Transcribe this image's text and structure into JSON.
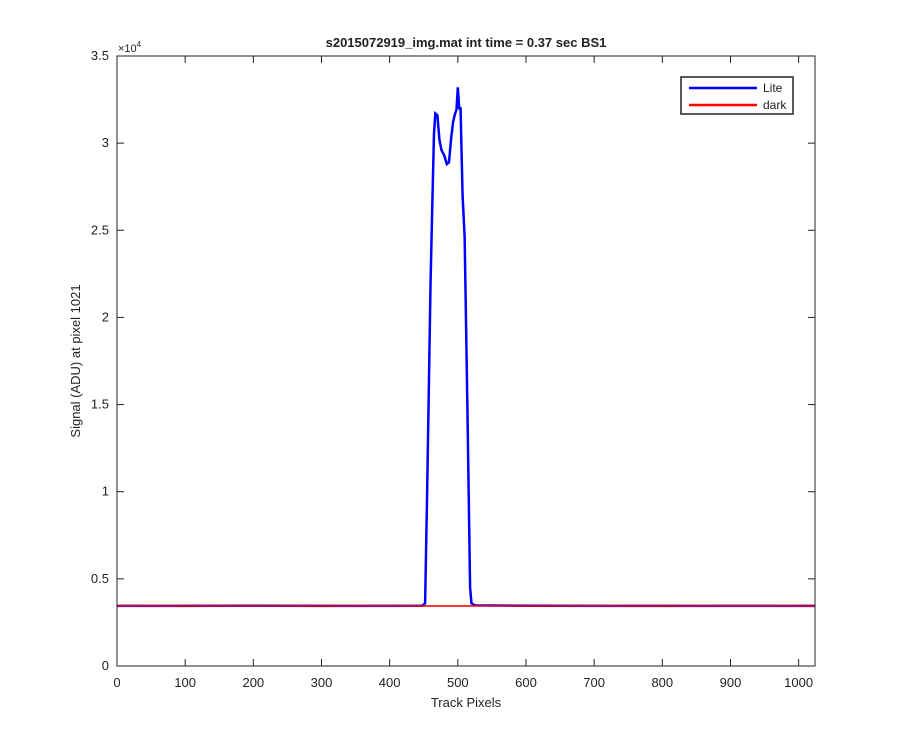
{
  "chart_data": {
    "type": "line",
    "title": "s2015072919_img.mat int time = 0.37 sec   BS1",
    "x_label": "Track Pixels",
    "y_label": "Signal (ADU) at pixel 1021",
    "y_multiplier": "×10",
    "y_multiplier_exponent": "4",
    "x": [
      0,
      100,
      200,
      300,
      400,
      448,
      452,
      455,
      460,
      462,
      465,
      467,
      470,
      473,
      476,
      480,
      484,
      487,
      490,
      493,
      496,
      498,
      500,
      502,
      504,
      507,
      510,
      514,
      518,
      520,
      525,
      600,
      700,
      800,
      900,
      1024
    ],
    "series": [
      {
        "name": "Lite",
        "color": "#0000ff",
        "values": [
          3450,
          3450,
          3460,
          3450,
          3450,
          3460,
          3600,
          10000,
          22000,
          25500,
          30500,
          31700,
          31600,
          30200,
          29600,
          29300,
          28800,
          28900,
          30200,
          31200,
          31700,
          31900,
          33200,
          32000,
          32000,
          27000,
          24600,
          15000,
          4500,
          3600,
          3480,
          3460,
          3450,
          3450,
          3450,
          3450
        ]
      },
      {
        "name": "dark",
        "color": "#ff0000",
        "values": [
          3450,
          3440,
          3450,
          3445,
          3450,
          3440,
          3450,
          3445,
          3450,
          3440,
          3450,
          3445,
          3450,
          3440,
          3450,
          3445,
          3450,
          3440,
          3450,
          3445,
          3450,
          3440,
          3450,
          3445,
          3450,
          3440,
          3450,
          3445,
          3450,
          3440,
          3450,
          3445,
          3450,
          3440,
          3450,
          3445
        ]
      }
    ],
    "xlim": [
      0,
      1024
    ],
    "ylim": [
      0,
      35000
    ],
    "xticks": [
      0,
      100,
      200,
      300,
      400,
      500,
      600,
      700,
      800,
      900,
      1000
    ],
    "yticks": [
      0,
      {
        "value": 5000,
        "label": "0.5"
      },
      {
        "value": 10000,
        "label": "1"
      },
      {
        "value": 15000,
        "label": "1.5"
      },
      {
        "value": 20000,
        "label": "2"
      },
      {
        "value": 25000,
        "label": "2.5"
      },
      {
        "value": 30000,
        "label": "3"
      },
      {
        "value": 35000,
        "label": "3.5"
      }
    ],
    "legend": "northeast",
    "grid": false
  }
}
